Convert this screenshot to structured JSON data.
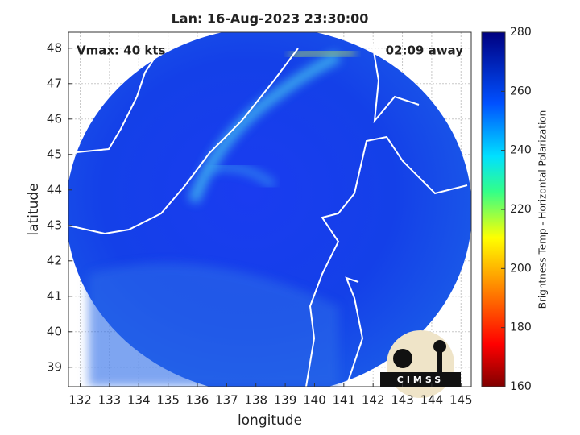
{
  "chart_data": {
    "type": "image",
    "title": "Lan: 16-Aug-2023 23:30:00",
    "annotations": [
      "Vmax: 40 kts",
      "02:09 away"
    ],
    "x_label": "longitude",
    "y_label": "latitude",
    "xlim": [
      131.6,
      145.35
    ],
    "ylim": [
      38.45,
      48.45
    ],
    "xticks": [
      132,
      133,
      134,
      135,
      136,
      137,
      138,
      139,
      140,
      141,
      142,
      143,
      144,
      145
    ],
    "yticks": [
      39,
      40,
      41,
      42,
      43,
      44,
      45,
      46,
      47,
      48
    ],
    "grid": true,
    "colorbar": {
      "label": "Brightness Temp - Horizontal Polarization",
      "lim": [
        160,
        280
      ],
      "ticks": [
        160,
        180,
        200,
        220,
        240,
        260,
        280
      ]
    },
    "logo": "CIMSS"
  }
}
